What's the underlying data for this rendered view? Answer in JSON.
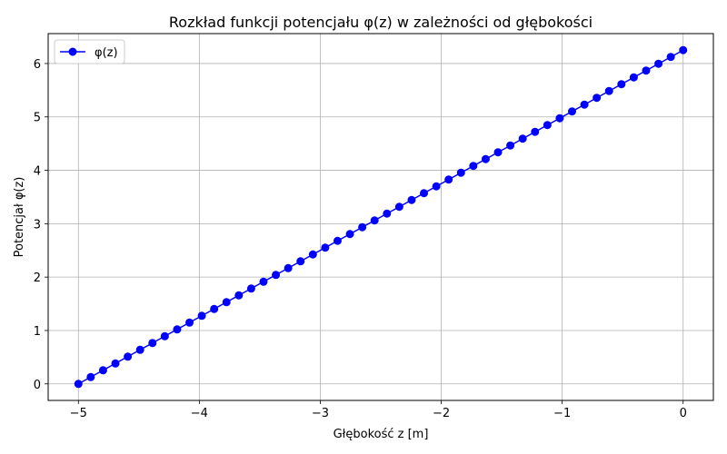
{
  "chart_data": {
    "type": "line",
    "title": "Rozkład funkcji potencjału φ(z) w zależności od głębokości",
    "xlabel": "Głębokość z [m]",
    "ylabel": "Potencjał φ(z)",
    "xlim": [
      -5.25,
      0.25
    ],
    "ylim": [
      -0.31,
      6.56
    ],
    "x_ticks": [
      -5,
      -4,
      -3,
      -2,
      -1,
      0
    ],
    "x_tick_labels": [
      "−5",
      "−4",
      "−3",
      "−2",
      "−1",
      "0"
    ],
    "y_ticks": [
      0,
      1,
      2,
      3,
      4,
      5,
      6
    ],
    "y_tick_labels": [
      "0",
      "1",
      "2",
      "3",
      "4",
      "5",
      "6"
    ],
    "grid": true,
    "legend_position": "top-left",
    "series": [
      {
        "name": "φ(z)",
        "color": "#0000ff",
        "marker": "circle",
        "x_start": -5,
        "x_end": 0,
        "num_points": 50,
        "y_start": 0,
        "y_end": 6.25
      }
    ]
  }
}
